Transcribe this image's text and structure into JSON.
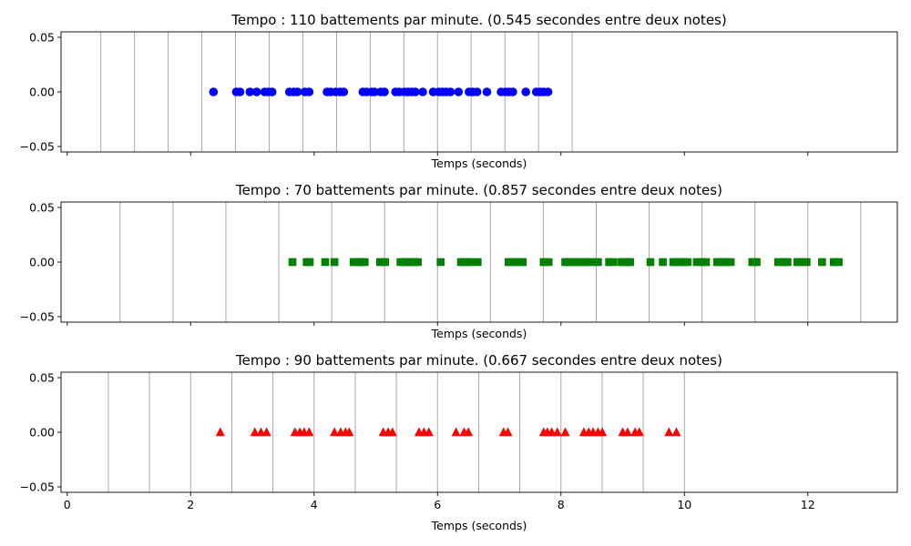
{
  "chart_data": [
    {
      "type": "scatter",
      "title": "Tempo : 110 battements par minute. (0.545 secondes entre deux notes)",
      "xlabel": "Temps (seconds)",
      "ylabel": "",
      "xlim": [
        -0.1,
        13.45
      ],
      "ylim": [
        -0.055,
        0.055
      ],
      "x_ticks": [
        0,
        2,
        4,
        6,
        8,
        10,
        12
      ],
      "x_tick_labels_visible": false,
      "y_ticks": [
        0.05,
        0.0,
        -0.05
      ],
      "y_tick_labels": [
        "0.05",
        "0.00",
        "−0.05"
      ],
      "beat_lines": [
        0.545,
        1.091,
        1.636,
        2.182,
        2.727,
        3.273,
        3.818,
        4.364,
        4.909,
        5.455,
        6.0,
        6.545,
        7.091,
        7.636,
        8.182
      ],
      "beat_line_color": "#a0a0a0",
      "marker": "circle",
      "color": "#0000ff",
      "x": [
        2.37,
        2.74,
        2.8,
        2.96,
        3.07,
        3.2,
        3.26,
        3.32,
        3.6,
        3.67,
        3.73,
        3.85,
        3.92,
        4.21,
        4.27,
        4.35,
        4.42,
        4.48,
        4.79,
        4.85,
        4.93,
        4.98,
        5.08,
        5.14,
        5.32,
        5.38,
        5.46,
        5.52,
        5.58,
        5.64,
        5.76,
        5.93,
        6.02,
        6.08,
        6.14,
        6.21,
        6.34,
        6.51,
        6.57,
        6.64,
        6.8,
        7.03,
        7.1,
        7.16,
        7.22,
        7.43,
        7.6,
        7.66,
        7.72,
        7.79
      ],
      "y": [
        0,
        0,
        0,
        0,
        0,
        0,
        0,
        0,
        0,
        0,
        0,
        0,
        0,
        0,
        0,
        0,
        0,
        0,
        0,
        0,
        0,
        0,
        0,
        0,
        0,
        0,
        0,
        0,
        0,
        0,
        0,
        0,
        0,
        0,
        0,
        0,
        0,
        0,
        0,
        0,
        0,
        0,
        0,
        0,
        0,
        0,
        0,
        0,
        0,
        0
      ]
    },
    {
      "type": "scatter",
      "title": "Tempo : 70 battements par minute. (0.857 secondes entre deux notes)",
      "xlabel": "Temps (seconds)",
      "ylabel": "",
      "xlim": [
        -0.1,
        13.45
      ],
      "ylim": [
        -0.055,
        0.055
      ],
      "x_ticks": [
        0,
        2,
        4,
        6,
        8,
        10,
        12
      ],
      "x_tick_labels_visible": false,
      "y_ticks": [
        0.05,
        0.0,
        -0.05
      ],
      "y_tick_labels": [
        "0.05",
        "0.00",
        "−0.05"
      ],
      "beat_lines": [
        0.857,
        1.714,
        2.571,
        3.429,
        4.286,
        5.143,
        6.0,
        6.857,
        7.714,
        8.571,
        9.429,
        10.286,
        11.143,
        12.0,
        12.857
      ],
      "beat_line_color": "#a0a0a0",
      "marker": "square",
      "color": "#008000",
      "x": [
        3.65,
        3.88,
        3.93,
        4.18,
        4.33,
        4.64,
        4.7,
        4.76,
        4.82,
        5.07,
        5.15,
        5.4,
        5.47,
        5.54,
        5.61,
        5.68,
        6.05,
        6.38,
        6.45,
        6.53,
        6.65,
        7.15,
        7.22,
        7.3,
        7.38,
        7.72,
        7.8,
        8.07,
        8.14,
        8.2,
        8.27,
        8.35,
        8.42,
        8.5,
        8.6,
        8.78,
        8.85,
        8.98,
        9.05,
        9.12,
        9.45,
        9.65,
        9.82,
        9.9,
        9.97,
        10.05,
        10.2,
        10.28,
        10.35,
        10.53,
        10.6,
        10.68,
        10.75,
        11.1,
        11.17,
        11.52,
        11.6,
        11.67,
        11.83,
        11.9,
        11.98,
        12.23,
        12.42,
        12.5
      ]
    },
    {
      "type": "scatter",
      "title": "Tempo : 90 battements par minute. (0.667 secondes entre deux notes)",
      "xlabel": "Temps (seconds)",
      "ylabel": "",
      "xlim": [
        -0.1,
        13.45
      ],
      "ylim": [
        -0.055,
        0.055
      ],
      "x_ticks": [
        0,
        2,
        4,
        6,
        8,
        10,
        12
      ],
      "x_tick_labels": [
        "0",
        "2",
        "4",
        "6",
        "8",
        "10",
        "12"
      ],
      "x_tick_labels_visible": true,
      "y_ticks": [
        0.05,
        0.0,
        -0.05
      ],
      "y_tick_labels": [
        "0.05",
        "0.00",
        "−0.05"
      ],
      "beat_lines": [
        0.667,
        1.333,
        2.0,
        2.667,
        3.333,
        4.0,
        4.667,
        5.333,
        6.0,
        6.667,
        7.333,
        8.0,
        8.667,
        9.333,
        10.0
      ],
      "beat_line_color": "#a0a0a0",
      "marker": "triangle",
      "color": "#ff0000",
      "x": [
        2.48,
        3.04,
        3.14,
        3.23,
        3.69,
        3.77,
        3.84,
        3.92,
        4.33,
        4.43,
        4.51,
        4.57,
        5.12,
        5.2,
        5.27,
        5.7,
        5.78,
        5.86,
        6.3,
        6.43,
        6.5,
        7.07,
        7.14,
        7.72,
        7.78,
        7.85,
        7.94,
        8.07,
        8.37,
        8.45,
        8.52,
        8.6,
        8.67,
        9.0,
        9.08,
        9.2,
        9.27,
        9.75,
        9.87
      ]
    }
  ]
}
